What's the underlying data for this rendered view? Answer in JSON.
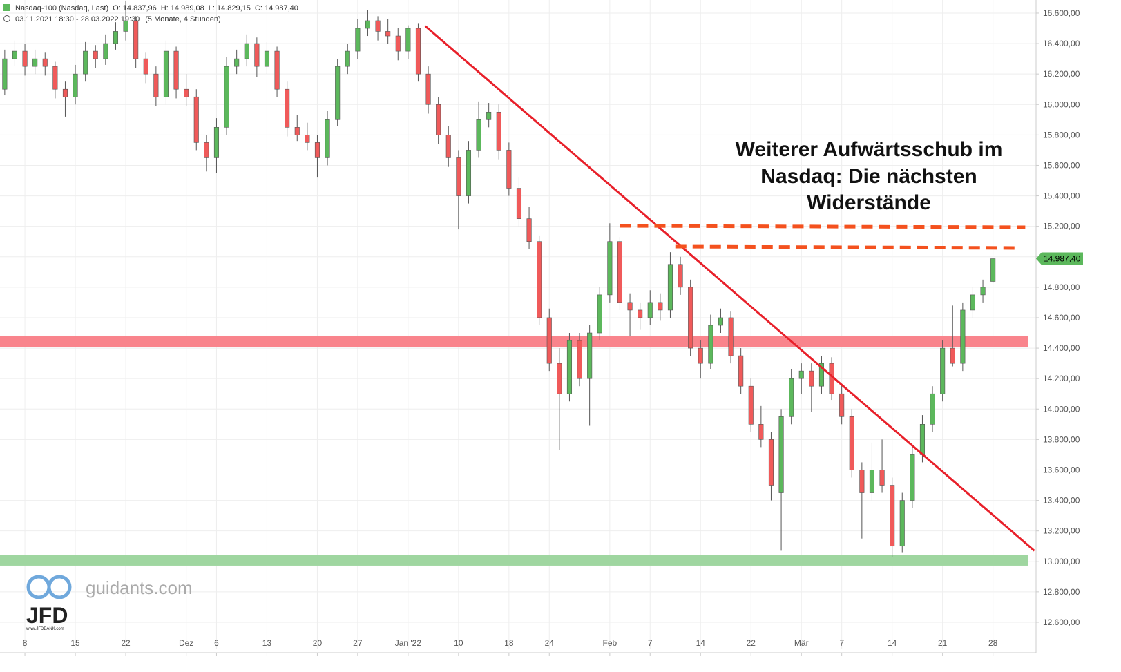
{
  "chart_data": {
    "type": "candlestick",
    "header": {
      "name": "Nasdaq-100 (Nasdaq, Last)",
      "values": [
        "O: 14.837,96",
        "H: 14.989,08",
        "L: 14.829,15",
        "C: 14.987,40"
      ],
      "range": "03.11.2021 18:30 - 28.03.2022 19:30",
      "period": "(5 Monate, 4 Stunden)"
    },
    "annotation": [
      "Weiterer Aufwärtsschub im",
      "Nasdaq: Die nächsten",
      "Widerstände"
    ],
    "last_price_label": "14.987,40",
    "watermark": {
      "site": "guidants.com",
      "brand": "JFD",
      "url": "www.JFDBANK.com"
    },
    "up_color": "#5cb85c",
    "down_color": "#f05a5a",
    "xlim": [
      0.53,
      103.27
    ],
    "ylim": [
      12423,
      16686
    ],
    "grid": true,
    "xticks": [
      {
        "value": 3,
        "label": "8"
      },
      {
        "value": 8,
        "label": "15"
      },
      {
        "value": 13,
        "label": "22"
      },
      {
        "value": 19,
        "label": "Dez"
      },
      {
        "value": 22,
        "label": "6"
      },
      {
        "value": 27,
        "label": "13"
      },
      {
        "value": 32,
        "label": "20"
      },
      {
        "value": 36,
        "label": "27"
      },
      {
        "value": 41,
        "label": "Jan '22"
      },
      {
        "value": 46,
        "label": "10"
      },
      {
        "value": 51,
        "label": "18"
      },
      {
        "value": 55,
        "label": "24"
      },
      {
        "value": 61,
        "label": "Feb"
      },
      {
        "value": 65,
        "label": "7"
      },
      {
        "value": 70,
        "label": "14"
      },
      {
        "value": 75,
        "label": "22"
      },
      {
        "value": 80,
        "label": "Mär"
      },
      {
        "value": 84,
        "label": "7"
      },
      {
        "value": 89,
        "label": "14"
      },
      {
        "value": 94,
        "label": "21"
      },
      {
        "value": 99,
        "label": "28"
      }
    ],
    "yticks": [
      {
        "value": 12600,
        "label": "12.600,00"
      },
      {
        "value": 12800,
        "label": "12.800,00"
      },
      {
        "value": 13000,
        "label": "13.000,00"
      },
      {
        "value": 13200,
        "label": "13.200,00"
      },
      {
        "value": 13400,
        "label": "13.400,00"
      },
      {
        "value": 13600,
        "label": "13.600,00"
      },
      {
        "value": 13800,
        "label": "13.800,00"
      },
      {
        "value": 14000,
        "label": "14.000,00"
      },
      {
        "value": 14200,
        "label": "14.200,00"
      },
      {
        "value": 14400,
        "label": "14.400,00"
      },
      {
        "value": 14600,
        "label": "14.600,00"
      },
      {
        "value": 14800,
        "label": "14.800,00"
      },
      {
        "value": 15000,
        "label": "15.000,00"
      },
      {
        "value": 15200,
        "label": "15.200,00"
      },
      {
        "value": 15400,
        "label": "15.400,00"
      },
      {
        "value": 15600,
        "label": "15.600,00"
      },
      {
        "value": 15800,
        "label": "15.800,00"
      },
      {
        "value": 16000,
        "label": "16.000,00"
      },
      {
        "value": 16200,
        "label": "16.200,00"
      },
      {
        "value": 16400,
        "label": "16.400,00"
      },
      {
        "value": 16600,
        "label": "16.600,00"
      }
    ],
    "zones": [
      {
        "from": 14405,
        "to": 14482,
        "color": "#f9848c"
      },
      {
        "from": 12972,
        "to": 13044,
        "color": "#9fd6a0"
      }
    ],
    "trendline": {
      "x": [
        42.7,
        103.1
      ],
      "y": [
        16515,
        13070
      ],
      "color": "#e8202a"
    },
    "resistances": [
      {
        "x": [
          62.0,
          102.2
        ],
        "y": [
          15203,
          15194
        ],
        "color": "#f4511e"
      },
      {
        "x": [
          67.5,
          101.4
        ],
        "y": [
          15067,
          15058
        ],
        "color": "#f4511e"
      }
    ],
    "x": [
      1,
      2,
      3,
      4,
      5,
      6,
      7,
      8,
      9,
      10,
      11,
      12,
      13,
      14,
      15,
      16,
      17,
      18,
      19,
      20,
      21,
      22,
      23,
      24,
      25,
      26,
      27,
      28,
      29,
      30,
      31,
      32,
      33,
      34,
      35,
      36,
      37,
      38,
      39,
      40,
      41,
      42,
      43,
      44,
      45,
      46,
      47,
      48,
      49,
      50,
      51,
      52,
      53,
      54,
      55,
      56,
      57,
      58,
      59,
      60,
      61,
      62,
      63,
      64,
      65,
      66,
      67,
      68,
      69,
      70,
      71,
      72,
      73,
      74,
      75,
      76,
      77,
      78,
      79,
      80,
      81,
      82,
      83,
      84,
      85,
      86,
      87,
      88,
      89,
      90,
      91,
      92,
      93,
      94,
      95,
      96,
      97,
      98,
      99
    ],
    "ohlc": [
      [
        16100,
        16360,
        16060,
        16300
      ],
      [
        16300,
        16420,
        16250,
        16350
      ],
      [
        16350,
        16400,
        16190,
        16250
      ],
      [
        16250,
        16360,
        16200,
        16300
      ],
      [
        16300,
        16340,
        16190,
        16250
      ],
      [
        16250,
        16280,
        16040,
        16100
      ],
      [
        16100,
        16150,
        15920,
        16050
      ],
      [
        16050,
        16260,
        16000,
        16200
      ],
      [
        16200,
        16410,
        16150,
        16350
      ],
      [
        16350,
        16390,
        16240,
        16300
      ],
      [
        16300,
        16460,
        16260,
        16400
      ],
      [
        16400,
        16540,
        16360,
        16480
      ],
      [
        16480,
        16680,
        16420,
        16550
      ],
      [
        16550,
        16580,
        16240,
        16300
      ],
      [
        16300,
        16340,
        16140,
        16200
      ],
      [
        16200,
        16250,
        15990,
        16050
      ],
      [
        16050,
        16420,
        16000,
        16350
      ],
      [
        16350,
        16380,
        16040,
        16100
      ],
      [
        16100,
        16200,
        15990,
        16050
      ],
      [
        16050,
        16100,
        15700,
        15750
      ],
      [
        15750,
        15800,
        15560,
        15650
      ],
      [
        15650,
        15910,
        15550,
        15850
      ],
      [
        15850,
        16310,
        15800,
        16250
      ],
      [
        16250,
        16360,
        16200,
        16300
      ],
      [
        16300,
        16460,
        16250,
        16400
      ],
      [
        16400,
        16440,
        16180,
        16250
      ],
      [
        16250,
        16410,
        16200,
        16350
      ],
      [
        16350,
        16380,
        16050,
        16100
      ],
      [
        16100,
        16150,
        15790,
        15850
      ],
      [
        15850,
        15930,
        15760,
        15800
      ],
      [
        15800,
        15880,
        15700,
        15750
      ],
      [
        15750,
        15800,
        15520,
        15650
      ],
      [
        15650,
        15960,
        15600,
        15900
      ],
      [
        15900,
        16300,
        15860,
        16250
      ],
      [
        16250,
        16400,
        16200,
        16350
      ],
      [
        16350,
        16560,
        16300,
        16500
      ],
      [
        16500,
        16620,
        16450,
        16550
      ],
      [
        16550,
        16580,
        16420,
        16480
      ],
      [
        16480,
        16560,
        16400,
        16450
      ],
      [
        16450,
        16500,
        16290,
        16350
      ],
      [
        16350,
        16520,
        16300,
        16500
      ],
      [
        16500,
        16530,
        16150,
        16200
      ],
      [
        16200,
        16250,
        15940,
        16000
      ],
      [
        16000,
        16050,
        15740,
        15800
      ],
      [
        15800,
        15860,
        15590,
        15650
      ],
      [
        15650,
        15700,
        15180,
        15400
      ],
      [
        15400,
        15760,
        15350,
        15700
      ],
      [
        15700,
        16020,
        15650,
        15900
      ],
      [
        15900,
        16010,
        15850,
        15950
      ],
      [
        15950,
        16000,
        15640,
        15700
      ],
      [
        15700,
        15750,
        15400,
        15450
      ],
      [
        15450,
        15520,
        15200,
        15250
      ],
      [
        15250,
        15330,
        15050,
        15100
      ],
      [
        15100,
        15140,
        14550,
        14600
      ],
      [
        14600,
        14660,
        14250,
        14300
      ],
      [
        14300,
        14400,
        13730,
        14100
      ],
      [
        14100,
        14500,
        14050,
        14450
      ],
      [
        14450,
        14500,
        14150,
        14200
      ],
      [
        14200,
        14550,
        13890,
        14500
      ],
      [
        14500,
        14800,
        14450,
        14750
      ],
      [
        14750,
        15220,
        14700,
        15100
      ],
      [
        15100,
        15130,
        14650,
        14700
      ],
      [
        14700,
        14760,
        14480,
        14650
      ],
      [
        14650,
        14700,
        14520,
        14600
      ],
      [
        14600,
        14780,
        14550,
        14700
      ],
      [
        14700,
        14760,
        14580,
        14650
      ],
      [
        14650,
        15030,
        14600,
        14950
      ],
      [
        14950,
        15000,
        14750,
        14800
      ],
      [
        14800,
        14850,
        14350,
        14400
      ],
      [
        14400,
        14450,
        14200,
        14300
      ],
      [
        14300,
        14620,
        14260,
        14550
      ],
      [
        14550,
        14660,
        14500,
        14600
      ],
      [
        14600,
        14640,
        14300,
        14350
      ],
      [
        14350,
        14400,
        14100,
        14150
      ],
      [
        14150,
        14200,
        13850,
        13900
      ],
      [
        13900,
        14020,
        13750,
        13800
      ],
      [
        13800,
        13850,
        13400,
        13500
      ],
      [
        13450,
        14000,
        13070,
        13950
      ],
      [
        13950,
        14260,
        13900,
        14200
      ],
      [
        14200,
        14300,
        14100,
        14250
      ],
      [
        14250,
        14300,
        13980,
        14150
      ],
      [
        14150,
        14350,
        14100,
        14300
      ],
      [
        14300,
        14340,
        14060,
        14100
      ],
      [
        14100,
        14160,
        13900,
        13950
      ],
      [
        13950,
        14000,
        13550,
        13600
      ],
      [
        13600,
        13650,
        13150,
        13450
      ],
      [
        13450,
        13780,
        13400,
        13600
      ],
      [
        13600,
        13800,
        13450,
        13500
      ],
      [
        13500,
        13550,
        13030,
        13100
      ],
      [
        13100,
        13450,
        13060,
        13400
      ],
      [
        13400,
        13750,
        13350,
        13700
      ],
      [
        13700,
        13960,
        13650,
        13900
      ],
      [
        13900,
        14150,
        13850,
        14100
      ],
      [
        14100,
        14450,
        14050,
        14400
      ],
      [
        14400,
        14680,
        14280,
        14300
      ],
      [
        14300,
        14700,
        14250,
        14650
      ],
      [
        14650,
        14800,
        14600,
        14750
      ],
      [
        14750,
        14850,
        14700,
        14800
      ],
      [
        14837.96,
        14989.08,
        14829.15,
        14987.4
      ]
    ]
  }
}
